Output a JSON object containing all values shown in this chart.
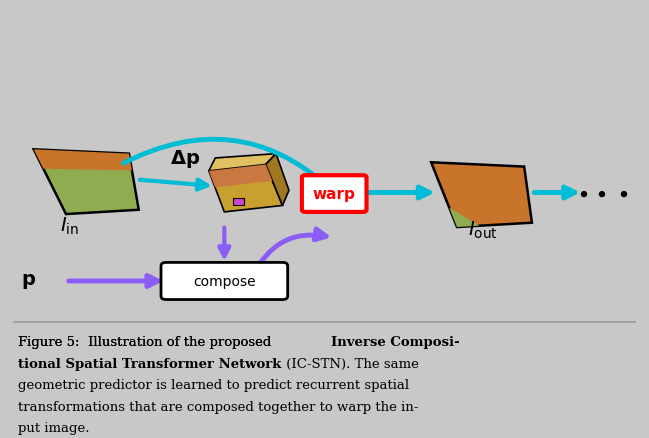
{
  "bg_color": "#c8c8c8",
  "title_color": "#1a1a1a",
  "cyan_color": "#00bcd4",
  "cyan_dark": "#0097a7",
  "purple_color": "#8b5cf6",
  "purple_dark": "#7c3aed",
  "warp_box_color": "#ff0000",
  "warp_text_color": "#ff0000",
  "compose_box_color": "#ffffff",
  "compose_border_color": "#000000",
  "dots_color": "#1a1a1a",
  "label_color": "#1a1a1a",
  "fig_width": 6.49,
  "fig_height": 4.39,
  "caption_line1": "Figure 5:  Illustration of the proposed ",
  "caption_bold1": "Inverse Composi-",
  "caption_line2_bold": "tional Spatial Transformer Network",
  "caption_line2_normal": " (IC-STN). The same",
  "caption_line3": "geometric predictor is learned to predict recurrent spatial",
  "caption_line4": "transformations that are composed together to warp the in-",
  "caption_line5": "put image."
}
